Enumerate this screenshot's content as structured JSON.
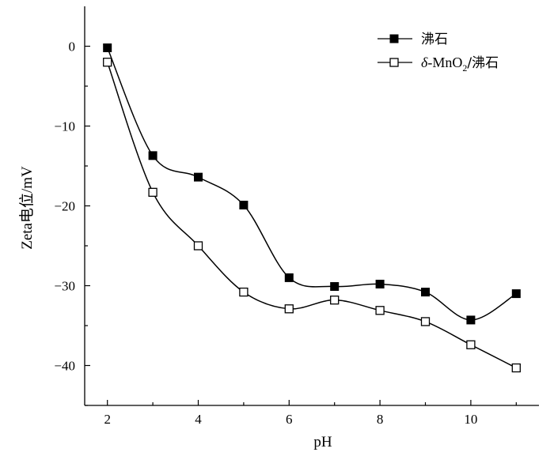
{
  "chart_data": {
    "type": "line",
    "xlabel": "pH",
    "ylabel": "Zeta电位/mV",
    "xlim": [
      1.5,
      11.5
    ],
    "ylim": [
      -45,
      5
    ],
    "xticks": [
      2,
      4,
      6,
      8,
      10
    ],
    "yticks": [
      0,
      -10,
      -20,
      -30,
      -40
    ],
    "grid": false,
    "legend_position": "top-right",
    "x": [
      2,
      3,
      4,
      5,
      6,
      7,
      8,
      9,
      10,
      11
    ],
    "series": [
      {
        "name": "沸石",
        "marker": "filled-square",
        "color": "#000000",
        "values": [
          -0.2,
          -13.7,
          -16.4,
          -19.9,
          -29.0,
          -30.1,
          -29.8,
          -30.8,
          -34.3,
          -31.0
        ]
      },
      {
        "name": "δ-MnO2/沸石",
        "legend_parts": {
          "italic": "δ",
          "main": "-MnO",
          "sub": "2",
          "tail": "/沸石"
        },
        "marker": "open-square",
        "color": "#000000",
        "values": [
          -2.0,
          -18.3,
          -25.0,
          -30.8,
          -32.9,
          -31.8,
          -33.1,
          -34.5,
          -37.4,
          -40.3
        ]
      }
    ]
  }
}
